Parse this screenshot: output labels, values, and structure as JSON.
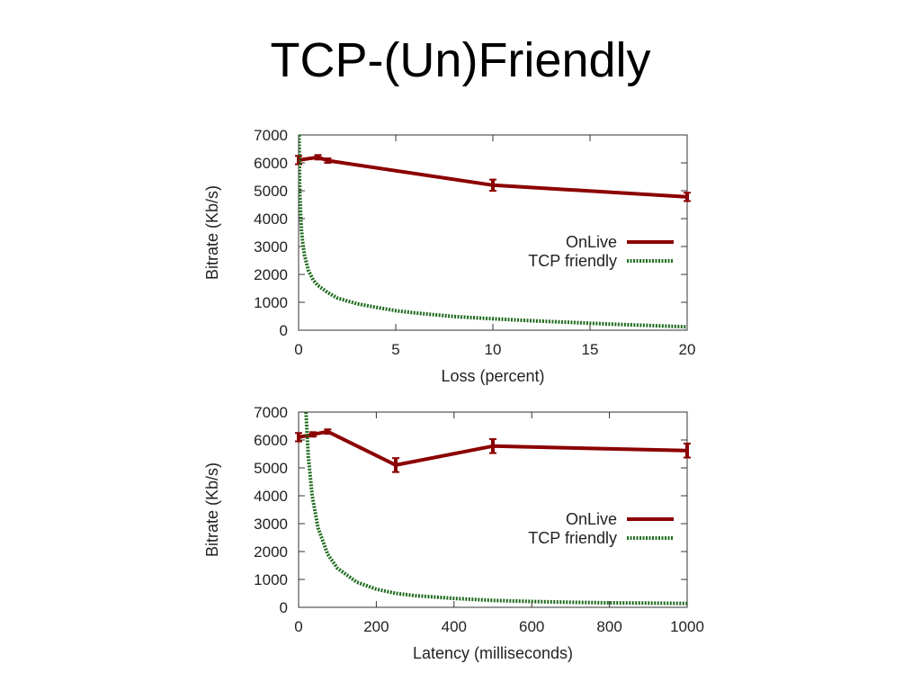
{
  "slide": {
    "title": "TCP-(Un)Friendly"
  },
  "colors": {
    "onlive": "#8b0000",
    "tcp": "#1e6b1e"
  },
  "chart_data": [
    {
      "type": "line",
      "xlabel": "Loss (percent)",
      "ylabel": "Bitrate (Kb/s)",
      "xlim": [
        0,
        20
      ],
      "ylim": [
        0,
        7000
      ],
      "xticks": [
        0,
        5,
        10,
        15,
        20
      ],
      "yticks": [
        0,
        1000,
        2000,
        3000,
        4000,
        5000,
        6000,
        7000
      ],
      "grid": false,
      "legend_position": "right",
      "series": [
        {
          "name": "OnLive",
          "style": "solid",
          "x": [
            0,
            1,
            1.5,
            10,
            20
          ],
          "y": [
            6100,
            6200,
            6080,
            5200,
            4780
          ],
          "error": [
            150,
            80,
            80,
            200,
            150
          ]
        },
        {
          "name": "TCP friendly",
          "style": "dotted",
          "x": [
            0.02,
            0.04,
            0.06,
            0.1,
            0.15,
            0.2,
            0.3,
            0.5,
            0.75,
            1,
            1.5,
            2,
            3,
            4,
            5,
            6,
            8,
            10,
            12,
            14,
            16,
            18,
            20
          ],
          "y": [
            7000,
            6000,
            5000,
            4200,
            3600,
            3200,
            2700,
            2150,
            1800,
            1600,
            1350,
            1150,
            950,
            820,
            700,
            620,
            490,
            410,
            340,
            280,
            220,
            170,
            120
          ]
        }
      ]
    },
    {
      "type": "line",
      "xlabel": "Latency (milliseconds)",
      "ylabel": "Bitrate (Kb/s)",
      "xlim": [
        0,
        1000
      ],
      "ylim": [
        0,
        7000
      ],
      "xticks": [
        0,
        200,
        400,
        600,
        800,
        1000
      ],
      "yticks": [
        0,
        1000,
        2000,
        3000,
        4000,
        5000,
        6000,
        7000
      ],
      "grid": false,
      "legend_position": "right",
      "series": [
        {
          "name": "OnLive",
          "style": "solid",
          "x": [
            0,
            37,
            75,
            250,
            500,
            1000
          ],
          "y": [
            6100,
            6200,
            6300,
            5100,
            5780,
            5620
          ],
          "error": [
            150,
            80,
            80,
            250,
            250,
            250
          ]
        },
        {
          "name": "TCP friendly",
          "style": "dotted",
          "x": [
            19,
            25,
            35,
            50,
            75,
            100,
            150,
            200,
            250,
            300,
            400,
            500,
            600,
            700,
            800,
            900,
            1000
          ],
          "y": [
            7000,
            5400,
            4000,
            2850,
            1900,
            1400,
            900,
            650,
            500,
            420,
            320,
            250,
            210,
            180,
            160,
            150,
            140
          ]
        }
      ]
    }
  ]
}
